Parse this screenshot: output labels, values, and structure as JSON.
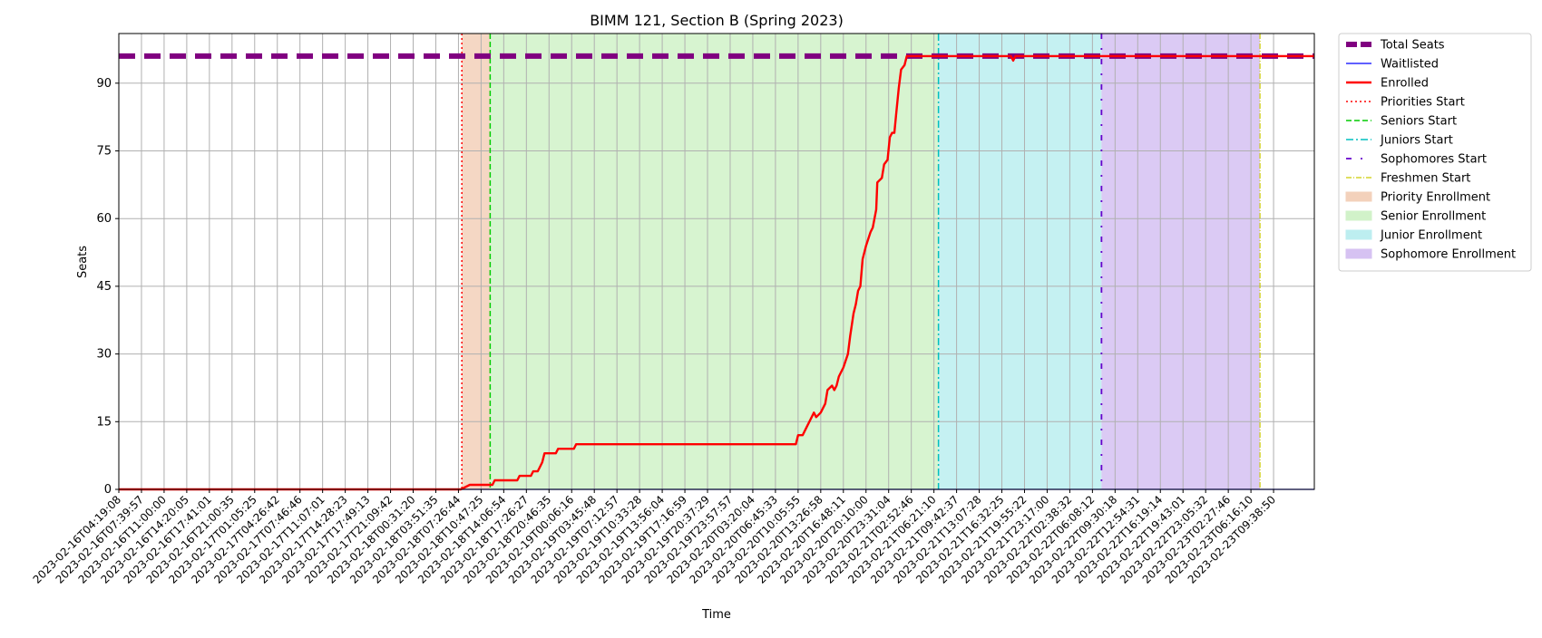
{
  "chart_data": {
    "type": "line",
    "title": "BIMM 121, Section B (Spring 2023)",
    "xlabel": "Time",
    "ylabel": "Seats",
    "ylim": [
      0,
      101
    ],
    "yticks": [
      0,
      15,
      30,
      45,
      60,
      75,
      90
    ],
    "grid": true,
    "legend_position": "outside-right-top",
    "x_tick_labels": [
      "2023-02-16T04:19:08",
      "2023-02-16T07:39:57",
      "2023-02-16T11:00:00",
      "2023-02-16T14:20:05",
      "2023-02-16T17:41:01",
      "2023-02-16T21:00:35",
      "2023-02-17T01:05:25",
      "2023-02-17T04:26:42",
      "2023-02-17T07:46:46",
      "2023-02-17T11:07:01",
      "2023-02-17T14:28:23",
      "2023-02-17T17:49:13",
      "2023-02-17T21:09:42",
      "2023-02-18T00:31:20",
      "2023-02-18T03:51:35",
      "2023-02-18T07:26:44",
      "2023-02-18T10:47:25",
      "2023-02-18T14:06:54",
      "2023-02-18T17:26:27",
      "2023-02-18T20:46:35",
      "2023-02-19T00:06:16",
      "2023-02-19T03:45:48",
      "2023-02-19T07:12:57",
      "2023-02-19T10:33:28",
      "2023-02-19T13:56:04",
      "2023-02-19T17:16:59",
      "2023-02-19T20:37:29",
      "2023-02-19T23:57:57",
      "2023-02-20T03:20:04",
      "2023-02-20T06:45:33",
      "2023-02-20T10:05:55",
      "2023-02-20T13:26:58",
      "2023-02-20T16:48:11",
      "2023-02-20T20:10:00",
      "2023-02-20T23:31:04",
      "2023-02-21T02:52:46",
      "2023-02-21T06:21:10",
      "2023-02-21T09:42:37",
      "2023-02-21T13:07:28",
      "2023-02-21T16:32:25",
      "2023-02-21T19:55:22",
      "2023-02-21T23:17:00",
      "2023-02-22T02:38:32",
      "2023-02-22T06:08:12",
      "2023-02-22T09:30:18",
      "2023-02-22T12:54:31",
      "2023-02-22T16:19:14",
      "2023-02-22T19:43:01",
      "2023-02-22T23:05:32",
      "2023-02-23T02:27:46",
      "2023-02-23T06:16:10",
      "2023-02-23T09:38:50"
    ],
    "series": [
      {
        "name": "Total Seats",
        "color": "#800080",
        "style": "dashed-thick",
        "values": [
          [
            0,
            96
          ],
          [
            52.8,
            96
          ]
        ]
      },
      {
        "name": "Waitlisted",
        "color": "#0000ff",
        "style": "solid-thin",
        "values": [
          [
            0,
            0
          ],
          [
            52.8,
            0
          ]
        ]
      },
      {
        "name": "Enrolled",
        "color": "#ff0000",
        "style": "solid",
        "values": [
          [
            0,
            0
          ],
          [
            15.1,
            0
          ],
          [
            15.5,
            1
          ],
          [
            16.5,
            1
          ],
          [
            16.6,
            2
          ],
          [
            17.6,
            2
          ],
          [
            17.7,
            3
          ],
          [
            18.2,
            3
          ],
          [
            18.3,
            4
          ],
          [
            18.5,
            4
          ],
          [
            18.6,
            5
          ],
          [
            18.7,
            6
          ],
          [
            18.8,
            8
          ],
          [
            19.3,
            8
          ],
          [
            19.4,
            9
          ],
          [
            20.1,
            9
          ],
          [
            20.2,
            10
          ],
          [
            29.9,
            10
          ],
          [
            30.0,
            12
          ],
          [
            30.2,
            12
          ],
          [
            30.4,
            14
          ],
          [
            30.6,
            16
          ],
          [
            30.7,
            17
          ],
          [
            30.8,
            16
          ],
          [
            31.0,
            17
          ],
          [
            31.2,
            19
          ],
          [
            31.3,
            22
          ],
          [
            31.5,
            23
          ],
          [
            31.6,
            22
          ],
          [
            31.7,
            23
          ],
          [
            31.8,
            25
          ],
          [
            32.0,
            27
          ],
          [
            32.2,
            30
          ],
          [
            32.3,
            34
          ],
          [
            32.45,
            39
          ],
          [
            32.55,
            41
          ],
          [
            32.65,
            44
          ],
          [
            32.75,
            45
          ],
          [
            32.85,
            51
          ],
          [
            33.0,
            54
          ],
          [
            33.2,
            57
          ],
          [
            33.3,
            58
          ],
          [
            33.45,
            62
          ],
          [
            33.5,
            68
          ],
          [
            33.7,
            69
          ],
          [
            33.8,
            72
          ],
          [
            33.95,
            73
          ],
          [
            34.05,
            78
          ],
          [
            34.15,
            79
          ],
          [
            34.25,
            79
          ],
          [
            34.35,
            84
          ],
          [
            34.45,
            89
          ],
          [
            34.55,
            93
          ],
          [
            34.7,
            94
          ],
          [
            34.8,
            96
          ],
          [
            39.4,
            96
          ],
          [
            39.5,
            95
          ],
          [
            39.6,
            96
          ],
          [
            52.8,
            96
          ]
        ]
      }
    ],
    "phase_lines": [
      {
        "name": "Priorities Start",
        "x": 15.15,
        "color": "#ff0000",
        "style": "dotted"
      },
      {
        "name": "Seniors Start",
        "x": 16.4,
        "color": "#00cc00",
        "style": "dashed"
      },
      {
        "name": "Juniors Start",
        "x": 36.2,
        "color": "#00bfbf",
        "style": "dashdot"
      },
      {
        "name": "Sophomores Start",
        "x": 43.4,
        "color": "#6600cc",
        "style": "dashdotted-loose"
      },
      {
        "name": "Freshmen Start",
        "x": 50.4,
        "color": "#cccc00",
        "style": "dashdot-thin"
      }
    ],
    "phase_spans": [
      {
        "name": "Priority Enrollment",
        "from": 15.15,
        "to": 16.4,
        "color": "#f2c9b0"
      },
      {
        "name": "Senior Enrollment",
        "from": 16.4,
        "to": 36.2,
        "color": "#c9f0c0"
      },
      {
        "name": "Junior Enrollment",
        "from": 36.2,
        "to": 43.4,
        "color": "#b2ecee"
      },
      {
        "name": "Sophomore Enrollment",
        "from": 43.4,
        "to": 50.4,
        "color": "#cfb8f0"
      }
    ],
    "legend": [
      {
        "label": "Total Seats",
        "kind": "line",
        "color": "#800080",
        "style": "dashed-thick"
      },
      {
        "label": "Waitlisted",
        "kind": "line",
        "color": "#0000ff",
        "style": "solid-thin"
      },
      {
        "label": "Enrolled",
        "kind": "line",
        "color": "#ff0000",
        "style": "solid"
      },
      {
        "label": "Priorities Start",
        "kind": "line",
        "color": "#ff0000",
        "style": "dotted"
      },
      {
        "label": "Seniors Start",
        "kind": "line",
        "color": "#00cc00",
        "style": "dashed"
      },
      {
        "label": "Juniors Start",
        "kind": "line",
        "color": "#00bfbf",
        "style": "dashdot"
      },
      {
        "label": "Sophomores Start",
        "kind": "line",
        "color": "#6600cc",
        "style": "dashdotted-loose"
      },
      {
        "label": "Freshmen Start",
        "kind": "line",
        "color": "#cccc00",
        "style": "dashdot-thin"
      },
      {
        "label": "Priority Enrollment",
        "kind": "patch",
        "color": "#f2c9b0"
      },
      {
        "label": "Senior Enrollment",
        "kind": "patch",
        "color": "#c9f0c0"
      },
      {
        "label": "Junior Enrollment",
        "kind": "patch",
        "color": "#b2ecee"
      },
      {
        "label": "Sophomore Enrollment",
        "kind": "patch",
        "color": "#cfb8f0"
      }
    ]
  }
}
